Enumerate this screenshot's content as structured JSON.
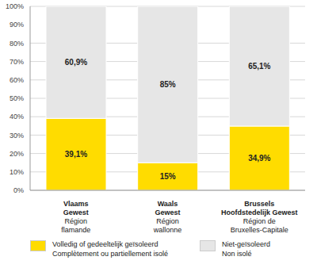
{
  "chart_data": {
    "type": "bar",
    "stacked": true,
    "data_labels": true,
    "grid": true,
    "categories": [
      "Vlaams\nGewest\nRégion\nflamande",
      "Waals\nGewest\nRégion\nwallonne",
      "Brussels\nHoofdstedelijk Gewest\nRégion de\nBruxelles-Capitale"
    ],
    "series": [
      {
        "name": "Volledig of gedeeltelijk geïsoleerd\nComplètement ou partiellement isolé",
        "color": "#ffdc00",
        "values": [
          39.1,
          15,
          34.9
        ],
        "value_labels": [
          "39,1%",
          "15%",
          "34,9%"
        ]
      },
      {
        "name": "Niet-geïsoleerd\nNon isolé",
        "color": "#e6e6e6",
        "values": [
          60.9,
          85,
          65.1
        ],
        "value_labels": [
          "60,9%",
          "85%",
          "65,1%"
        ]
      }
    ],
    "ylim": [
      0,
      100
    ],
    "yticks": [
      {
        "value": 0,
        "label": "0%"
      },
      {
        "value": 10,
        "label": "10%"
      },
      {
        "value": 20,
        "label": "20%"
      },
      {
        "value": 30,
        "label": "30%"
      },
      {
        "value": 40,
        "label": "40%"
      },
      {
        "value": 50,
        "label": "50%"
      },
      {
        "value": 60,
        "label": "60%"
      },
      {
        "value": 70,
        "label": "70%"
      },
      {
        "value": 80,
        "label": "80%"
      },
      {
        "value": 90,
        "label": "90%"
      },
      {
        "value": 100,
        "label": "100%"
      }
    ]
  }
}
